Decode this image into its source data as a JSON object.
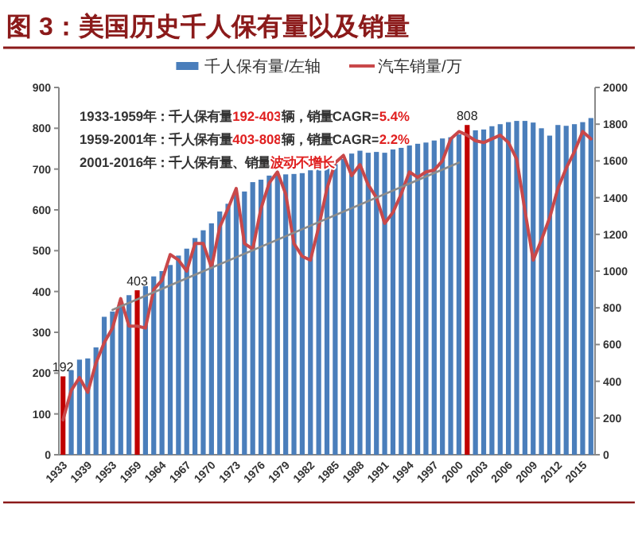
{
  "chart_data": {
    "type": "bar",
    "title": "图 3：美国历史千人保有量以及销量",
    "categories": [
      "1933",
      null,
      null,
      "1939",
      null,
      null,
      "1953",
      null,
      null,
      "1959",
      null,
      null,
      "1964",
      null,
      null,
      "1967",
      null,
      null,
      "1970",
      null,
      null,
      "1973",
      null,
      null,
      "1976",
      null,
      null,
      "1979",
      null,
      null,
      "1982",
      null,
      null,
      "1985",
      null,
      null,
      "1988",
      null,
      null,
      "1991",
      null,
      null,
      "1994",
      null,
      null,
      "1997",
      null,
      null,
      "2000",
      null,
      null,
      "2003",
      null,
      null,
      "2006",
      null,
      null,
      "2009",
      null,
      null,
      "2012",
      null,
      null,
      "2015",
      null
    ],
    "series": [
      {
        "name": "千人保有量/左轴",
        "color": "#4a7ebb",
        "colors": [
          "#c00000",
          "#4a7ebb",
          "#4a7ebb",
          "#4a7ebb",
          "#4a7ebb",
          "#4a7ebb",
          "#4a7ebb",
          "#4a7ebb",
          "#4a7ebb",
          "#c00000",
          "#4a7ebb",
          "#4a7ebb",
          "#4a7ebb",
          "#4a7ebb",
          "#4a7ebb",
          "#4a7ebb",
          "#4a7ebb",
          "#4a7ebb",
          "#4a7ebb",
          "#4a7ebb",
          "#4a7ebb",
          "#4a7ebb",
          "#4a7ebb",
          "#4a7ebb",
          "#4a7ebb",
          "#4a7ebb",
          "#4a7ebb",
          "#4a7ebb",
          "#4a7ebb",
          "#4a7ebb",
          "#4a7ebb",
          "#4a7ebb",
          "#4a7ebb",
          "#4a7ebb",
          "#4a7ebb",
          "#4a7ebb",
          "#4a7ebb",
          "#4a7ebb",
          "#4a7ebb",
          "#4a7ebb",
          "#4a7ebb",
          "#4a7ebb",
          "#4a7ebb",
          "#4a7ebb",
          "#4a7ebb",
          "#4a7ebb",
          "#4a7ebb",
          "#4a7ebb",
          "#4a7ebb",
          "#c00000",
          "#4a7ebb",
          "#4a7ebb",
          "#4a7ebb",
          "#4a7ebb",
          "#4a7ebb",
          "#4a7ebb",
          "#4a7ebb",
          "#4a7ebb",
          "#4a7ebb",
          "#4a7ebb",
          "#4a7ebb",
          "#4a7ebb",
          "#4a7ebb",
          "#4a7ebb",
          "#4a7ebb"
        ],
        "values": [
          192,
          207,
          233,
          236,
          263,
          338,
          351,
          374,
          391,
          403,
          413,
          437,
          450,
          465,
          488,
          505,
          531,
          550,
          567,
          596,
          615,
          637,
          645,
          668,
          674,
          684,
          687,
          687,
          688,
          690,
          697,
          700,
          703,
          712,
          725,
          738,
          745,
          740,
          742,
          740,
          748,
          752,
          758,
          762,
          765,
          770,
          775,
          778,
          785,
          808,
          795,
          797,
          805,
          810,
          815,
          818,
          818,
          814,
          800,
          782,
          808,
          806,
          810,
          815,
          825
        ],
        "value_labels": [
          "192",
          null,
          null,
          null,
          null,
          null,
          null,
          null,
          null,
          "403",
          null,
          null,
          null,
          null,
          null,
          null,
          null,
          null,
          null,
          null,
          null,
          null,
          null,
          null,
          null,
          null,
          null,
          null,
          null,
          null,
          null,
          null,
          null,
          null,
          null,
          null,
          null,
          null,
          null,
          null,
          null,
          null,
          null,
          null,
          null,
          null,
          null,
          null,
          null,
          "808",
          null,
          null,
          null,
          null,
          null,
          null,
          null,
          null,
          null,
          null,
          null,
          null,
          null,
          null,
          null
        ]
      },
      {
        "name": "汽车销量/万",
        "type": "line",
        "axis": "y2",
        "color": "#c9484a",
        "values": [
          190,
          350,
          420,
          340,
          500,
          610,
          690,
          850,
          700,
          700,
          690,
          900,
          950,
          1090,
          1060,
          1000,
          1150,
          1150,
          1020,
          1240,
          1340,
          1450,
          1150,
          1120,
          1340,
          1480,
          1540,
          1420,
          1150,
          1080,
          1060,
          1240,
          1450,
          1590,
          1630,
          1520,
          1580,
          1470,
          1400,
          1260,
          1320,
          1420,
          1540,
          1510,
          1540,
          1550,
          1600,
          1720,
          1760,
          1740,
          1710,
          1700,
          1720,
          1740,
          1700,
          1610,
          1330,
          1060,
          1170,
          1290,
          1450,
          1560,
          1650,
          1760,
          1720
        ]
      },
      {
        "type": "line",
        "color": "#8c8c8c",
        "values": [
          null,
          null,
          null,
          null,
          null,
          null,
          355,
          null,
          null,
          null,
          null,
          null,
          null,
          null,
          null,
          null,
          null,
          null,
          null,
          null,
          null,
          null,
          null,
          null,
          null,
          null,
          null,
          null,
          null,
          null,
          null,
          null,
          null,
          null,
          null,
          null,
          null,
          null,
          null,
          null,
          null,
          null,
          null,
          null,
          null,
          null,
          null,
          null,
          716,
          null,
          null,
          null,
          null,
          null,
          null,
          null,
          null,
          null,
          null,
          null,
          null,
          null,
          null,
          null,
          null
        ]
      }
    ],
    "ylim": [
      0,
      900
    ],
    "yticks": [
      0,
      100,
      200,
      300,
      400,
      500,
      600,
      700,
      800,
      900
    ],
    "y2lim": [
      0,
      2000
    ],
    "y2ticks": [
      0,
      200,
      400,
      600,
      800,
      1000,
      1200,
      1400,
      1600,
      1800,
      2000
    ],
    "legend": "top",
    "annotations": [
      "1933-1959年：千人保有量",
      "192-403",
      "辆，销量CAGR=",
      "5.4%",
      "1959-2001年：千人保有量",
      "403-808",
      "辆，销量CAGR=",
      "2.2%",
      "2001-2016年：千人保有量、销量",
      "波动不增长"
    ]
  }
}
